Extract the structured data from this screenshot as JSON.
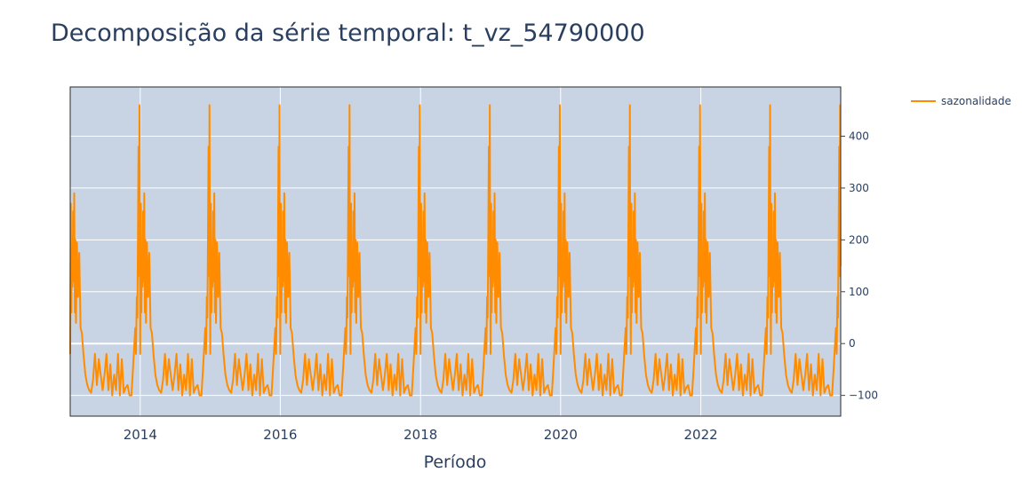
{
  "chart_data": {
    "type": "line",
    "title": "Decomposição da série temporal: t_vz_54790000",
    "xlabel": "Período",
    "ylabel": "",
    "x_range": [
      "2013-01-01",
      "2023-12-31"
    ],
    "ylim": [
      -140,
      495
    ],
    "x_ticks": [
      "2014",
      "2016",
      "2018",
      "2020",
      "2022"
    ],
    "x_tick_dates": [
      "2014-01-01",
      "2016-01-01",
      "2018-01-01",
      "2020-01-01",
      "2022-01-01"
    ],
    "y_ticks": [
      400,
      300,
      200,
      100,
      0,
      -100
    ],
    "y_tick_labels": [
      "400",
      "300",
      "200",
      "100",
      "0",
      "−100"
    ],
    "grid": true,
    "legend_position": "top-right",
    "plot_background": "#c8d4e3",
    "series": [
      {
        "name": "sazonalidade",
        "color": "#ff8c00",
        "seasonal_pattern_doy": [
          1,
          4,
          7,
          10,
          13,
          16,
          19,
          22,
          25,
          28,
          31,
          36,
          42,
          48,
          55,
          62,
          70,
          80,
          90,
          100,
          110,
          120,
          130,
          140,
          150,
          160,
          170,
          180,
          190,
          200,
          210,
          220,
          230,
          240,
          250,
          260,
          270,
          280,
          290,
          300,
          310,
          320,
          328,
          334,
          340,
          344,
          348,
          351,
          354,
          357,
          360,
          362,
          364
        ],
        "seasonal_pattern_values": [
          -20,
          270,
          60,
          180,
          110,
          255,
          120,
          290,
          60,
          200,
          40,
          195,
          90,
          175,
          30,
          20,
          -20,
          -60,
          -80,
          -90,
          -95,
          -70,
          -20,
          -80,
          -30,
          -60,
          -90,
          -60,
          -20,
          -90,
          -40,
          -100,
          -60,
          -90,
          -20,
          -100,
          -30,
          -95,
          -85,
          -80,
          -100,
          -100,
          -50,
          -10,
          30,
          -20,
          90,
          50,
          200,
          380,
          130,
          460,
          150
        ]
      }
    ]
  },
  "legend": {
    "label": "sazonalidade"
  }
}
